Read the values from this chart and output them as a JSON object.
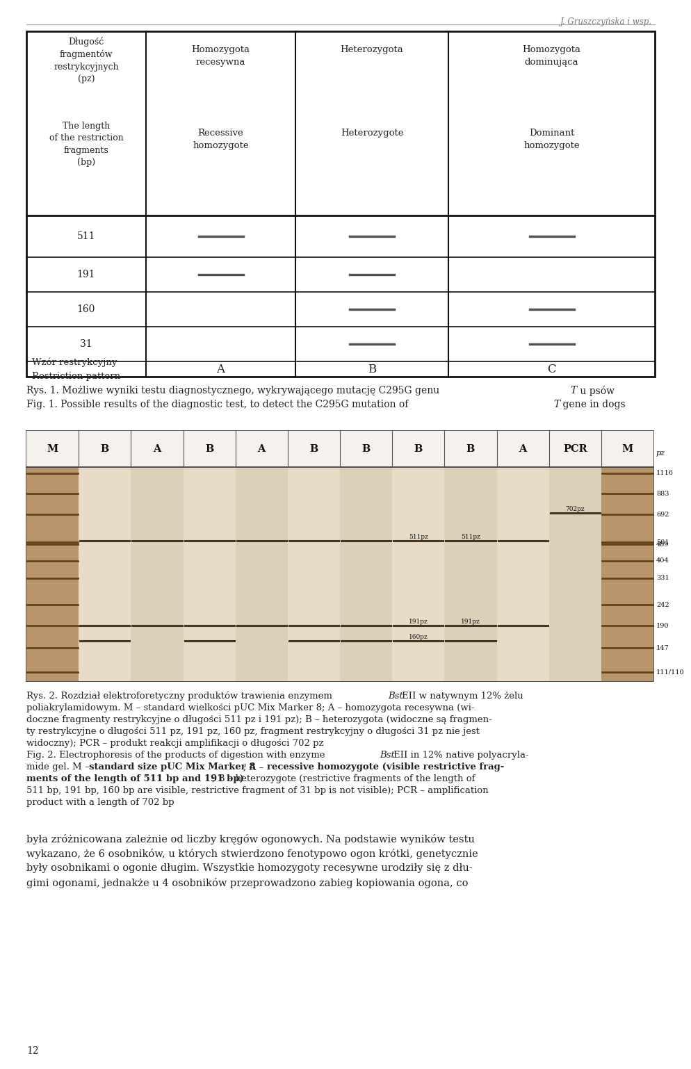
{
  "header_text": "J. Gruszczyńska i wsp.",
  "table_col0_header_pl": "Długość\nfragmentów\nrestrykcyjnych\n(pz)",
  "table_col0_header_en": "The length\nof the restriction\nfragments\n(bp)",
  "table_col1_header_pl": "Homozygota\nrecesywna",
  "table_col2_header_pl": "Heterozygota",
  "table_col3_header_pl": "Homozygota\ndominująca",
  "table_col1_header_en": "Recessive\nhomozygote",
  "table_col2_header_en": "Heterozygote",
  "table_col3_header_en": "Dominant\nhomozygote",
  "row_511_bands": [
    true,
    true,
    true
  ],
  "row_191_bands": [
    true,
    true,
    false
  ],
  "row_160_bands": [
    false,
    true,
    true
  ],
  "row_31_bands": [
    false,
    true,
    true
  ],
  "row_labels": [
    "511",
    "191",
    "160",
    "31"
  ],
  "pattern_label_pl": "Wzór restrykcyjny",
  "pattern_label_en": "Restriction pattern",
  "pattern_labels": [
    "A",
    "B",
    "C"
  ],
  "gel_label_row": [
    "M",
    "B",
    "A",
    "B",
    "A",
    "B",
    "B",
    "B",
    "B",
    "A",
    "PCR",
    "M"
  ],
  "gel_pz_label": "pz",
  "gel_right_labels": [
    "1116",
    "883",
    "692",
    "501",
    "489",
    "404",
    "331",
    "242",
    "190",
    "147",
    "111/110"
  ],
  "gel_right_sizes": [
    1116,
    883,
    692,
    501,
    489,
    404,
    331,
    242,
    190,
    147,
    111
  ],
  "page_num": "12",
  "bg_color": "#ffffff",
  "text_color": "#222222",
  "band_color": "#555555",
  "gel_bg_color": "#c8a878",
  "gel_marker_bg": "#b8956a",
  "gel_sample_bg_even": "#ddd0b8",
  "gel_sample_bg_odd": "#e8dcc8",
  "marker_band_color": "#5a3a10",
  "table_border_color": "#111111",
  "header_color": "#777777"
}
